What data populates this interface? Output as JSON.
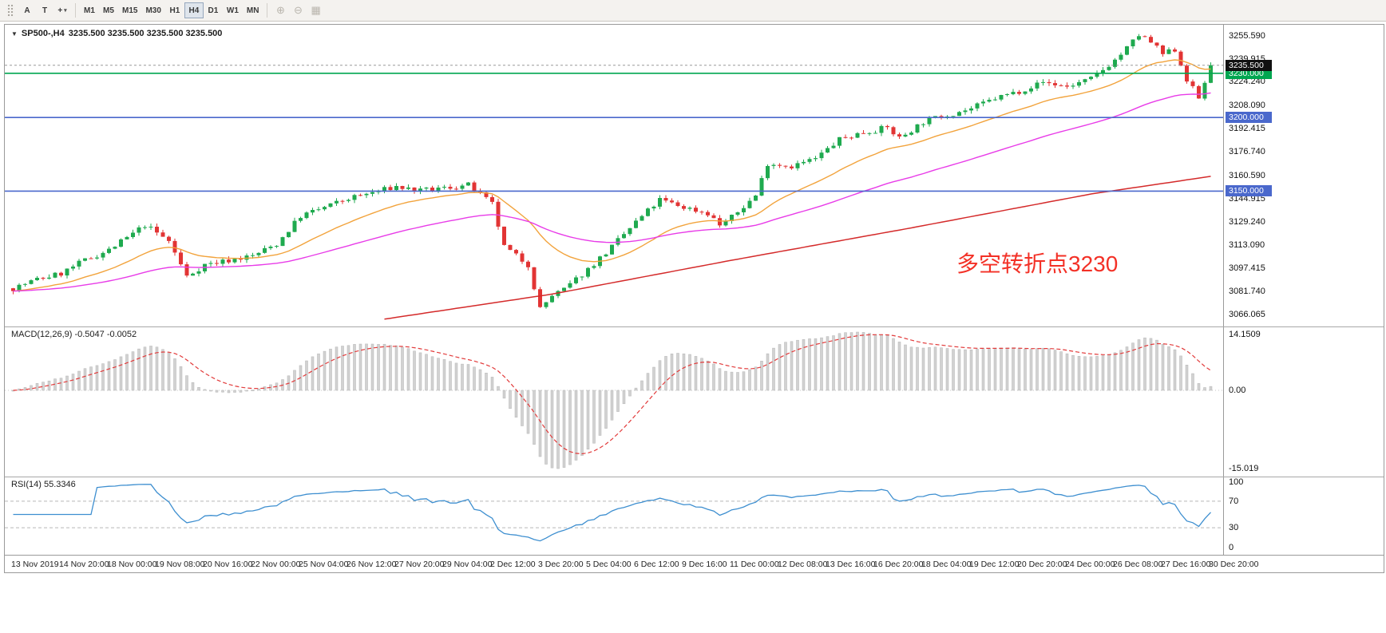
{
  "icons": {
    "arrow_tool": "A",
    "text_tool": "T",
    "crosshair": "+",
    "chevron_down": "▾",
    "collapse_triangle": "▼",
    "zoom_in": "⊕",
    "zoom_out": "⊖",
    "grid": "▦"
  },
  "toolbar": {
    "timeframes": [
      {
        "label": "M1",
        "active": false
      },
      {
        "label": "M5",
        "active": false
      },
      {
        "label": "M15",
        "active": false
      },
      {
        "label": "M30",
        "active": false
      },
      {
        "label": "H1",
        "active": false
      },
      {
        "label": "H4",
        "active": true
      },
      {
        "label": "D1",
        "active": false
      },
      {
        "label": "W1",
        "active": false
      },
      {
        "label": "MN",
        "active": false
      }
    ]
  },
  "chart": {
    "symbol_line": "SP500-,H4",
    "ohlc_line": "3235.500 3235.500 3235.500 3235.500",
    "annotation": "多空转折点3230",
    "price_ticks": [
      "3255.590",
      "3239.915",
      "3224.240",
      "3208.090",
      "3192.415",
      "3176.740",
      "3160.590",
      "3144.915",
      "3129.240",
      "3113.090",
      "3097.415",
      "3081.740",
      "3066.065"
    ],
    "current_price": {
      "value": 3235.5,
      "label": "3235.500"
    },
    "hlines": [
      {
        "value": 3230.0,
        "label": "3230.000",
        "color": "#00a650"
      },
      {
        "value": 3200.0,
        "label": "3200.000",
        "color": "#4a68cc"
      },
      {
        "value": 3150.0,
        "label": "3150.000",
        "color": "#4a68cc"
      }
    ]
  },
  "macd": {
    "label": "MACD(12,26,9) -0.5047 -0.0052",
    "fast": 12,
    "slow": 26,
    "signal_period": 9,
    "axis_ticks": [
      "14.1509",
      "0.00",
      "-15.019"
    ],
    "range": [
      -15.019,
      14.1509
    ]
  },
  "rsi": {
    "label": "RSI(14) 55.3346",
    "period": 14,
    "levels": [
      70,
      30
    ],
    "axis_ticks": [
      "100",
      "70",
      "30",
      "0"
    ],
    "range": [
      0,
      100
    ]
  },
  "time_axis": {
    "bars_per_label": 8,
    "labels": [
      "13 Nov 2019",
      "14 Nov 20:00",
      "18 Nov 00:00",
      "19 Nov 08:00",
      "20 Nov 16:00",
      "22 Nov 00:00",
      "25 Nov 04:00",
      "26 Nov 12:00",
      "27 Nov 20:00",
      "29 Nov 04:00",
      "2 Dec 12:00",
      "3 Dec 20:00",
      "5 Dec 04:00",
      "6 Dec 12:00",
      "9 Dec 16:00",
      "11 Dec 00:00",
      "12 Dec 08:00",
      "13 Dec 16:00",
      "16 Dec 20:00",
      "18 Dec 04:00",
      "19 Dec 12:00",
      "20 Dec 20:00",
      "24 Dec 00:00",
      "26 Dec 08:00",
      "27 Dec 16:00",
      "30 Dec 20:00"
    ]
  },
  "chart_data": {
    "type": "candlestick",
    "symbol": "SP500-",
    "timeframe": "H4",
    "bars": 201,
    "seed": 7,
    "noise": 2.0,
    "price_axis_max": 3263,
    "price_axis_min": 3058,
    "bull_color": "#1faa4f",
    "bear_color": "#e23434",
    "price_path": [
      [
        0,
        3084
      ],
      [
        4,
        3090
      ],
      [
        8,
        3094
      ],
      [
        12,
        3103
      ],
      [
        16,
        3110
      ],
      [
        20,
        3121
      ],
      [
        22,
        3127
      ],
      [
        26,
        3116
      ],
      [
        29,
        3092
      ],
      [
        32,
        3100
      ],
      [
        36,
        3103
      ],
      [
        40,
        3106
      ],
      [
        44,
        3114
      ],
      [
        48,
        3133
      ],
      [
        52,
        3139
      ],
      [
        56,
        3145
      ],
      [
        60,
        3149
      ],
      [
        64,
        3153
      ],
      [
        68,
        3150
      ],
      [
        72,
        3152
      ],
      [
        76,
        3154
      ],
      [
        80,
        3141
      ],
      [
        82,
        3112
      ],
      [
        86,
        3100
      ],
      [
        88,
        3070
      ],
      [
        90,
        3079
      ],
      [
        92,
        3083
      ],
      [
        96,
        3097
      ],
      [
        100,
        3112
      ],
      [
        104,
        3129
      ],
      [
        108,
        3144
      ],
      [
        112,
        3139
      ],
      [
        116,
        3135
      ],
      [
        118,
        3127
      ],
      [
        120,
        3132
      ],
      [
        124,
        3147
      ],
      [
        126,
        3169
      ],
      [
        130,
        3167
      ],
      [
        134,
        3172
      ],
      [
        138,
        3185
      ],
      [
        142,
        3190
      ],
      [
        146,
        3193
      ],
      [
        148,
        3186
      ],
      [
        152,
        3197
      ],
      [
        156,
        3202
      ],
      [
        160,
        3206
      ],
      [
        164,
        3213
      ],
      [
        168,
        3218
      ],
      [
        172,
        3224
      ],
      [
        176,
        3221
      ],
      [
        180,
        3226
      ],
      [
        184,
        3239
      ],
      [
        186,
        3247
      ],
      [
        188,
        3256
      ],
      [
        190,
        3251
      ],
      [
        192,
        3243
      ],
      [
        194,
        3246
      ],
      [
        196,
        3226
      ],
      [
        198,
        3213
      ],
      [
        200,
        3235.5
      ]
    ],
    "moving_averages": [
      {
        "name": "ma-fast-orange",
        "period": 20,
        "color": "#f2a33c"
      },
      {
        "name": "ma-mid-magenta",
        "period": 58,
        "color": "#e83ce8"
      }
    ],
    "ma_slow": {
      "name": "ma-slow-red",
      "color": "#d42a2a",
      "points": [
        [
          62,
          3063
        ],
        [
          90,
          3080
        ],
        [
          120,
          3103
        ],
        [
          150,
          3125
        ],
        [
          180,
          3148
        ],
        [
          200,
          3160
        ]
      ]
    }
  }
}
